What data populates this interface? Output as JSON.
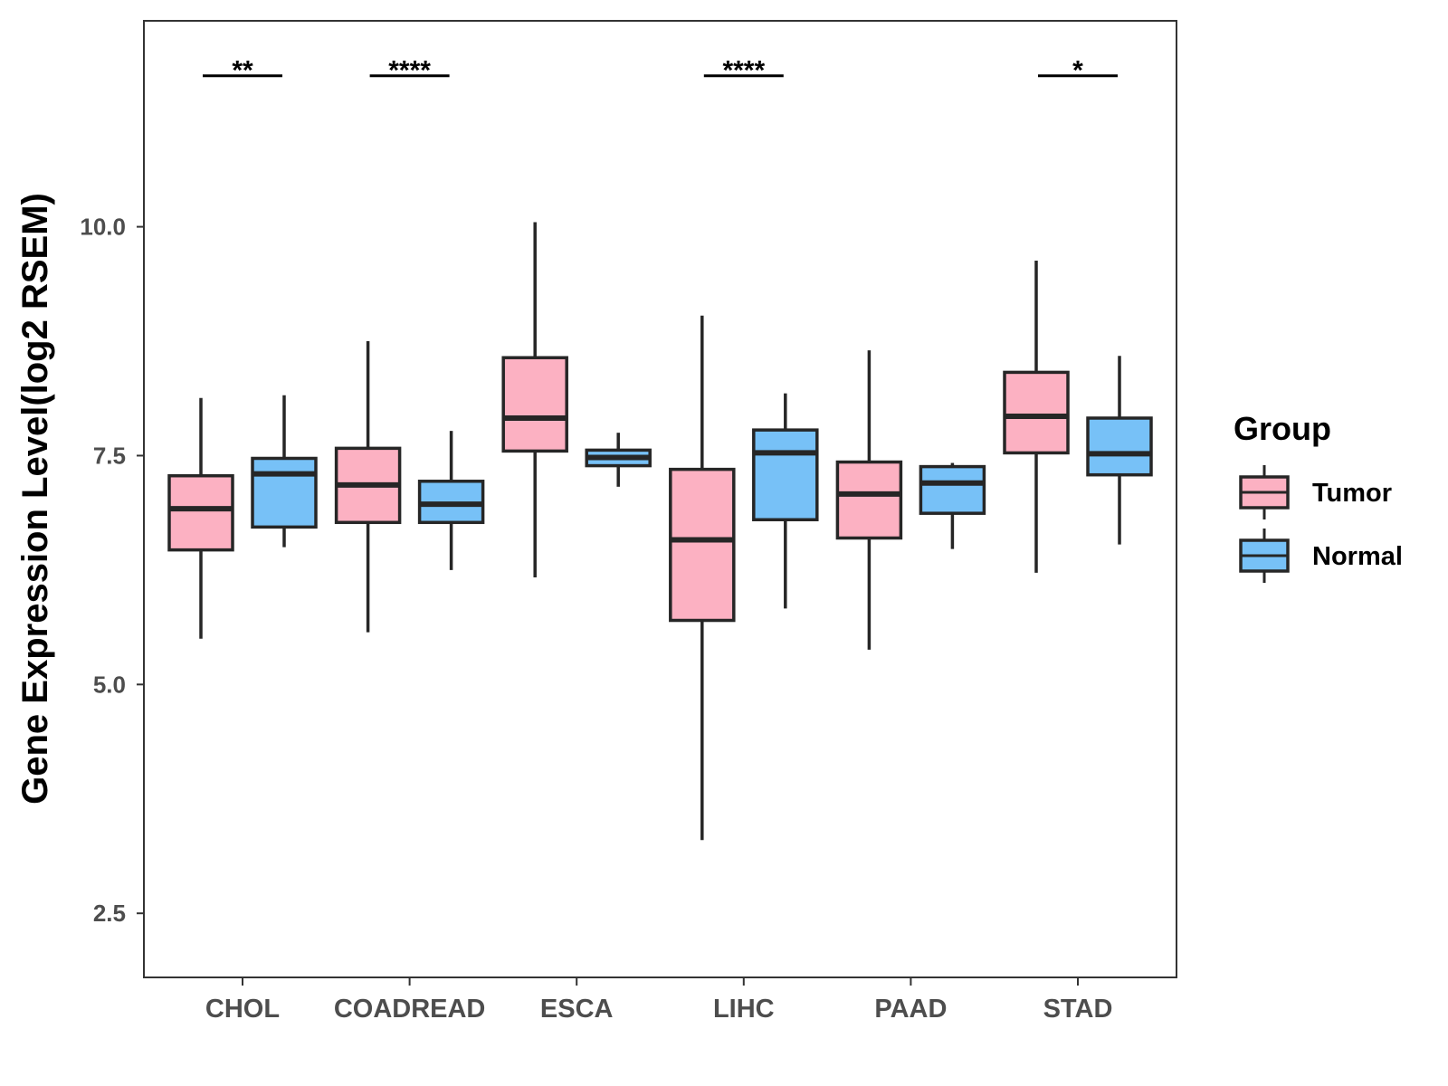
{
  "chart_data": {
    "type": "boxplot",
    "title": "",
    "xlabel": "",
    "ylabel": "Gene Expression Level(log2 RSEM)",
    "ylim": [
      1.8,
      12.25
    ],
    "yticks": [
      2.5,
      5.0,
      7.5,
      10.0
    ],
    "ytick_labels": [
      "2.5",
      "5.0",
      "7.5",
      "10.0"
    ],
    "categories": [
      "CHOL",
      "COADREAD",
      "ESCA",
      "LIHC",
      "PAAD",
      "STAD"
    ],
    "series": [
      {
        "name": "Tumor",
        "color": "#FCB1C2",
        "boxes": [
          {
            "min": 5.5,
            "q1": 6.47,
            "median": 6.92,
            "q3": 7.28,
            "max": 8.13
          },
          {
            "min": 5.57,
            "q1": 6.77,
            "median": 7.18,
            "q3": 7.58,
            "max": 8.75
          },
          {
            "min": 6.17,
            "q1": 7.55,
            "median": 7.91,
            "q3": 8.57,
            "max": 10.05
          },
          {
            "min": 3.3,
            "q1": 5.7,
            "median": 6.58,
            "q3": 7.35,
            "max": 9.03
          },
          {
            "min": 5.38,
            "q1": 6.6,
            "median": 7.08,
            "q3": 7.43,
            "max": 8.65
          },
          {
            "min": 6.22,
            "q1": 7.53,
            "median": 7.93,
            "q3": 8.41,
            "max": 9.63
          }
        ]
      },
      {
        "name": "Normal",
        "color": "#77C1F7",
        "boxes": [
          {
            "min": 6.5,
            "q1": 6.72,
            "median": 7.3,
            "q3": 7.47,
            "max": 8.16
          },
          {
            "min": 6.25,
            "q1": 6.77,
            "median": 6.97,
            "q3": 7.22,
            "max": 7.77
          },
          {
            "min": 7.16,
            "q1": 7.39,
            "median": 7.48,
            "q3": 7.56,
            "max": 7.75
          },
          {
            "min": 5.83,
            "q1": 6.8,
            "median": 7.53,
            "q3": 7.78,
            "max": 8.18
          },
          {
            "min": 6.48,
            "q1": 6.87,
            "median": 7.2,
            "q3": 7.38,
            "max": 7.42
          },
          {
            "min": 6.53,
            "q1": 7.29,
            "median": 7.52,
            "q3": 7.91,
            "max": 8.59
          }
        ]
      }
    ],
    "significance": [
      {
        "category": "CHOL",
        "label": "**"
      },
      {
        "category": "COADREAD",
        "label": "****"
      },
      {
        "category": "LIHC",
        "label": "****"
      },
      {
        "category": "STAD",
        "label": "*"
      }
    ],
    "significance_bar_y": 11.65,
    "legend": {
      "title": "Group",
      "position": "right",
      "items": [
        "Tumor",
        "Normal"
      ]
    },
    "grid": false
  }
}
